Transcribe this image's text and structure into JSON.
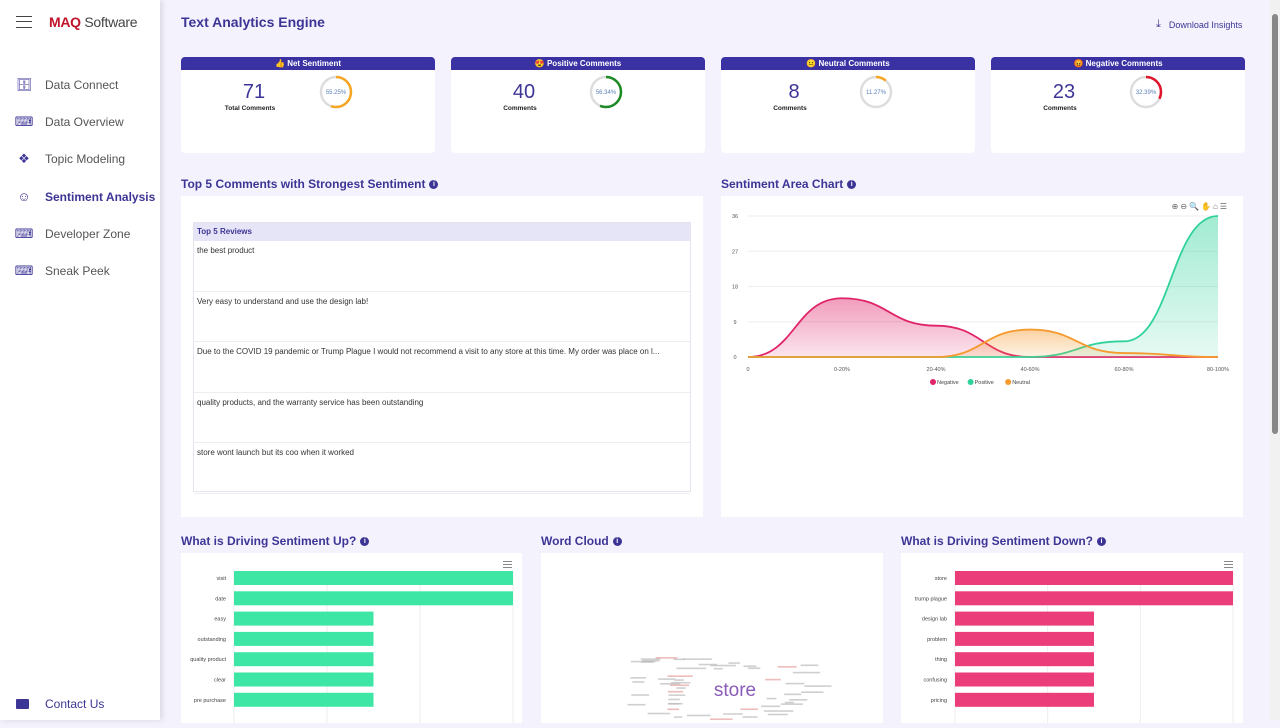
{
  "brand": {
    "logo_bold": "MAQ",
    "logo_rest": "Software"
  },
  "sidebar": {
    "items": [
      {
        "label": "Data Connect",
        "icon": "database-icon"
      },
      {
        "label": "Data Overview",
        "icon": "code-window-icon"
      },
      {
        "label": "Topic Modeling",
        "icon": "cubes-icon"
      },
      {
        "label": "Sentiment Analysis",
        "icon": "smiley-icon",
        "active": true
      },
      {
        "label": "Developer Zone",
        "icon": "code-window-icon"
      },
      {
        "label": "Sneak Peek",
        "icon": "code-window-icon"
      }
    ],
    "contact": "Contact Us"
  },
  "header": {
    "title": "Text Analytics Engine",
    "download": "Download Insights"
  },
  "kpis": [
    {
      "title": "Net Sentiment",
      "emoji": "👍",
      "value": "71",
      "label": "Total Comments",
      "percent": "55.25%",
      "fraction": 0.5525,
      "color": "#f5a623"
    },
    {
      "title": "Positive Comments",
      "emoji": "😍",
      "value": "40",
      "label": "Comments",
      "percent": "56.34%",
      "fraction": 0.5634,
      "color": "#1e8a24"
    },
    {
      "title": "Neutral Comments",
      "emoji": "😐",
      "value": "8",
      "label": "Comments",
      "percent": "11.27%",
      "fraction": 0.1127,
      "color": "#f5a623"
    },
    {
      "title": "Negative Comments",
      "emoji": "😡",
      "value": "23",
      "label": "Comments",
      "percent": "32.39%",
      "fraction": 0.3239,
      "color": "#e0142b"
    }
  ],
  "top5": {
    "title": "Top 5 Comments with Strongest Sentiment",
    "header": "Top 5 Reviews",
    "rows": [
      "the best product",
      "Very easy to understand and use the design lab!",
      "Due to the COVID 19 pandemic or Trump Plague I would not recommend a visit to any store at this time. My order was place on l...",
      "quality products, and the warranty service has been outstanding",
      "store wont launch but its coo when it worked"
    ]
  },
  "area": {
    "title": "Sentiment Area Chart"
  },
  "up": {
    "title": "What is Driving Sentiment Up?"
  },
  "cloud": {
    "title": "Word Cloud",
    "main_word": "store"
  },
  "down": {
    "title": "What is Driving Sentiment Down?"
  },
  "chart_data": [
    {
      "type": "area",
      "categories": [
        "0",
        "0-20%",
        "20-40%",
        "40-60%",
        "60-80%",
        "80-100%"
      ],
      "ylim": [
        0,
        36
      ],
      "yticks": [
        0,
        9,
        18,
        27,
        36
      ],
      "legend": "bottom",
      "series": [
        {
          "name": "Negative",
          "values": [
            0,
            15,
            8,
            0,
            0,
            0
          ],
          "color": "#e0246a"
        },
        {
          "name": "Positive",
          "values": [
            0,
            0,
            0,
            0,
            4,
            36
          ],
          "color": "#2fd39a"
        },
        {
          "name": "Neutral",
          "values": [
            0,
            0,
            0,
            7,
            1,
            0
          ],
          "color": "#f59a2f"
        }
      ]
    },
    {
      "type": "bar",
      "orientation": "horizontal",
      "categories": [
        "visit",
        "date",
        "easy",
        "outstanding",
        "quality product",
        "clear",
        "pre purchase"
      ],
      "values": [
        2,
        2,
        1,
        1,
        1,
        1,
        1
      ],
      "xlim": [
        0,
        2
      ],
      "color": "#3ee6a6"
    },
    {
      "type": "bar",
      "orientation": "horizontal",
      "categories": [
        "store",
        "trump plague",
        "design lab",
        "problem",
        "thing",
        "confusing",
        "pricing"
      ],
      "values": [
        2,
        2,
        1,
        1,
        1,
        1,
        1
      ],
      "xlim": [
        0,
        2
      ],
      "color": "#ea3d7a"
    }
  ]
}
